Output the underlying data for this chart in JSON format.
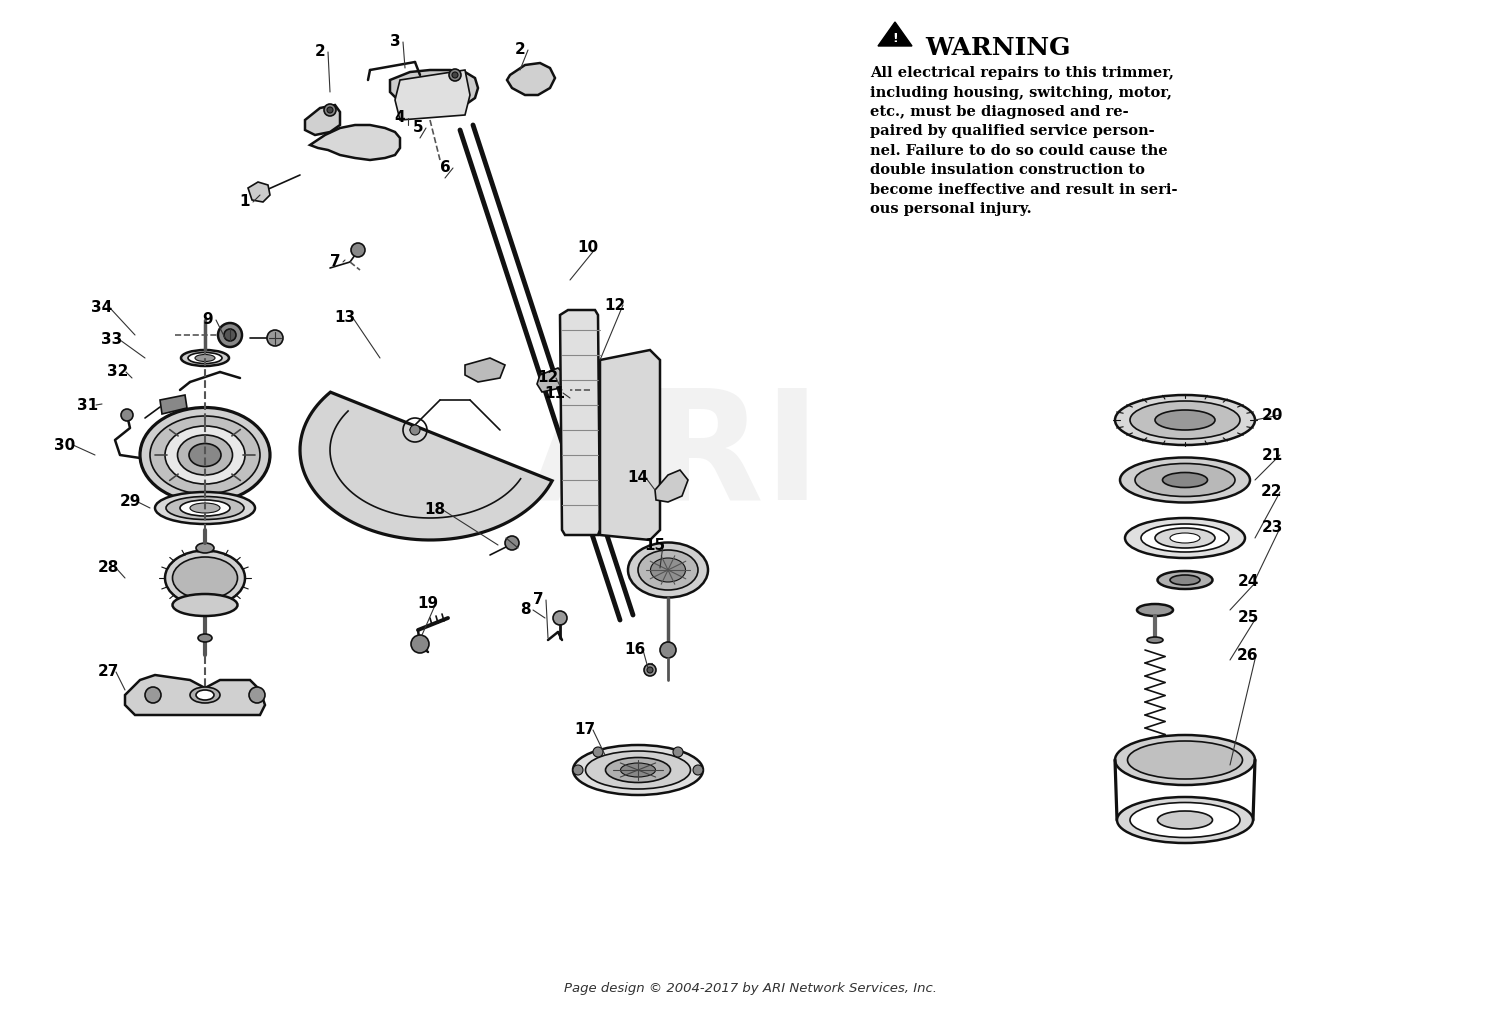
{
  "background_color": "#ffffff",
  "warning_title": "WARNING",
  "warning_body": "All electrical repairs to this trimmer,\nincluding housing, switching, motor,\netc., must be diagnosed and re-\npaired by qualified service person-\nnel. Failure to do so could cause the\ndouble insulation construction to\nbecome ineffective and result in seri-\nous personal injury.",
  "footer": "Page design © 2004-2017 by ARI Network Services, Inc.",
  "watermark": "ARI",
  "fig_width": 15.0,
  "fig_height": 10.16,
  "dpi": 100
}
